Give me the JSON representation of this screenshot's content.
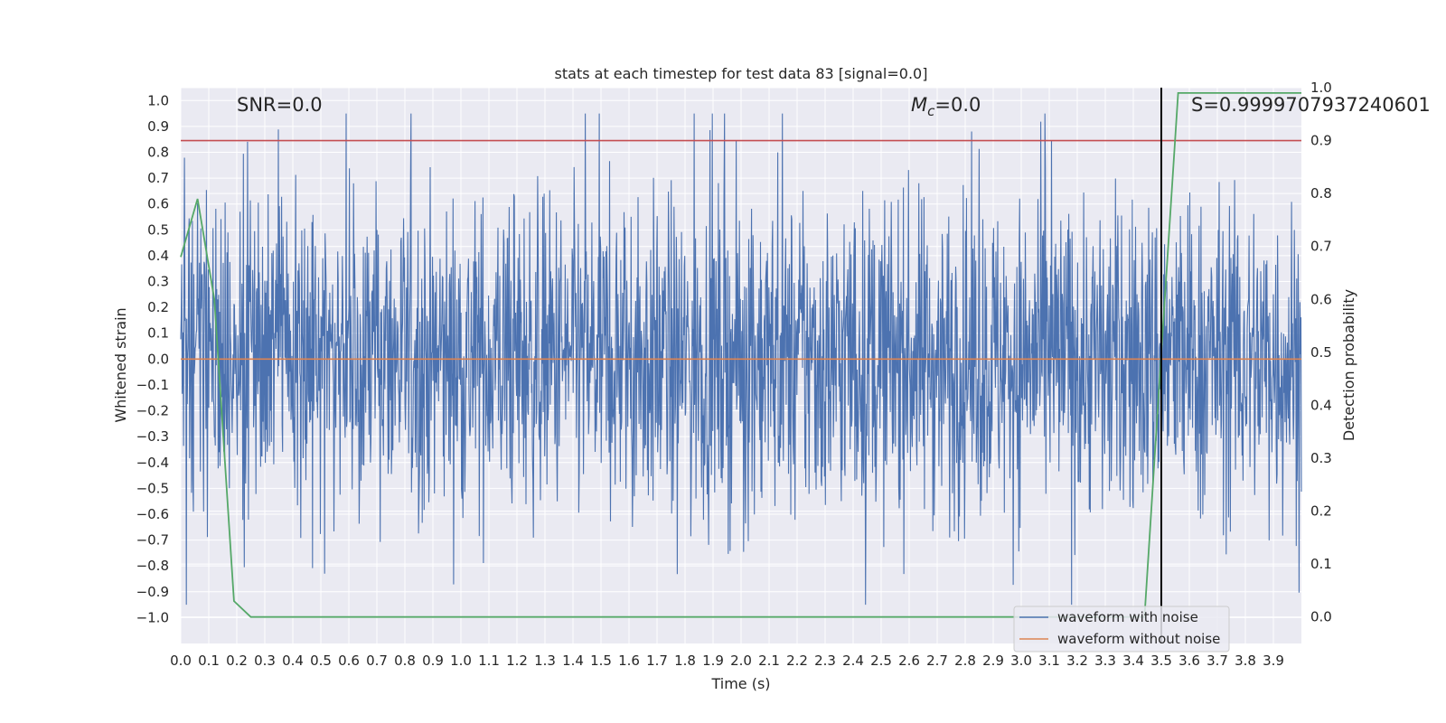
{
  "chart_data": {
    "type": "line",
    "title": "stats at each timestep for test data 83 [signal=0.0]",
    "xlabel": "Time (s)",
    "ylabel": "Whitened strain",
    "y2label": "Detection probability",
    "xlim": [
      0.0,
      4.0
    ],
    "ylim": [
      -1.1,
      1.05
    ],
    "y2lim": [
      -0.05,
      1.0
    ],
    "x_ticks": [
      "0.0",
      "0.1",
      "0.2",
      "0.3",
      "0.4",
      "0.5",
      "0.6",
      "0.7",
      "0.8",
      "0.9",
      "1.0",
      "1.1",
      "1.2",
      "1.3",
      "1.4",
      "1.5",
      "1.6",
      "1.7",
      "1.8",
      "1.9",
      "2.0",
      "2.1",
      "2.2",
      "2.3",
      "2.4",
      "2.5",
      "2.6",
      "2.7",
      "2.8",
      "2.9",
      "3.0",
      "3.1",
      "3.2",
      "3.3",
      "3.4",
      "3.5",
      "3.6",
      "3.7",
      "3.8",
      "3.9"
    ],
    "y_ticks": [
      "1.0",
      "0.9",
      "0.8",
      "0.7",
      "0.6",
      "0.5",
      "0.4",
      "0.3",
      "0.2",
      "0.1",
      "0.0",
      "−0.1",
      "−0.2",
      "−0.3",
      "−0.4",
      "−0.5",
      "−0.6",
      "−0.7",
      "−0.8",
      "−0.9",
      "−1.0"
    ],
    "y2_ticks": [
      "1.0",
      "0.9",
      "0.8",
      "0.7",
      "0.6",
      "0.5",
      "0.4",
      "0.3",
      "0.2",
      "0.1",
      "0.0"
    ],
    "grid": true,
    "legend_position": "lower-right",
    "annotations": {
      "snr": "SNR=0.0",
      "mc_symbol": "M",
      "mc_sub": "c",
      "mc_value": "=0.0",
      "s": "S=0.9999707937240601"
    },
    "series": [
      {
        "name": "waveform with noise",
        "axis": "left",
        "color": "#4c72b0",
        "description_of_values": "dense random noise between about -0.95 and 0.95",
        "amplitude_range": [
          -0.95,
          0.95
        ]
      },
      {
        "name": "waveform without noise",
        "axis": "left",
        "color": "#dd8452",
        "x": [
          0.0,
          4.0
        ],
        "y": [
          0.0,
          0.0
        ]
      },
      {
        "axis": "right",
        "color": "#55a868",
        "x": [
          0.0,
          0.06,
          0.12,
          0.19,
          0.25,
          0.31,
          3.44,
          3.5,
          3.56,
          3.62,
          4.0
        ],
        "y": [
          0.68,
          0.79,
          0.6,
          0.03,
          0.0,
          0.0,
          0.0,
          0.5,
          0.99,
          0.99,
          0.99
        ]
      }
    ],
    "reference_lines": {
      "threshold_y2": 0.9,
      "threshold_color": "#c44e52",
      "vertical_x": 3.5,
      "vertical_color": "#000000"
    }
  }
}
